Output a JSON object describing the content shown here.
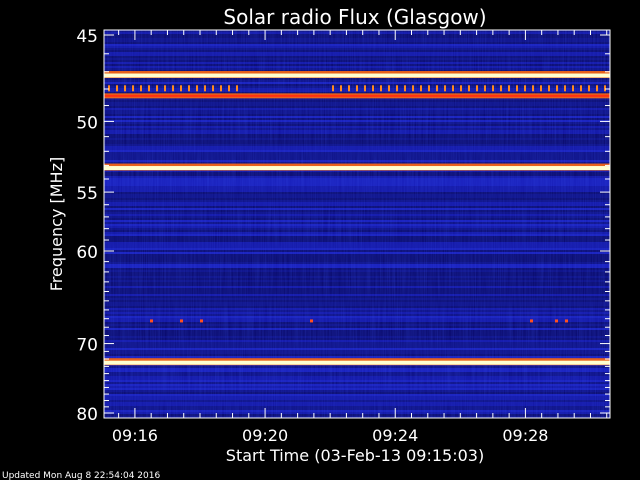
{
  "chart_data": {
    "type": "heatmap",
    "title": "Solar radio Flux (Glasgow)",
    "xlabel": "Start Time (03-Feb-13 09:15:03)",
    "ylabel": "Frequency [MHz]",
    "updated_text": "Updated Mon Aug  8 22:54:04 2016",
    "x_ticks": [
      "09:16",
      "09:20",
      "09:24",
      "09:28"
    ],
    "x_tick_minutes": [
      16,
      20,
      24,
      28
    ],
    "x_range_minutes": [
      15.05,
      30.6
    ],
    "y_ticks": [
      "45",
      "50",
      "55",
      "60",
      "70",
      "80"
    ],
    "y_tick_values": [
      45,
      50,
      55,
      60,
      70,
      80
    ],
    "y_range_mhz": [
      45,
      80
    ],
    "y_scale": "reciprocal",
    "colors": {
      "background": "#000000",
      "low": "#0a0a8c",
      "high": "#ffffe0",
      "mid": "#ff4000"
    },
    "bright_bands_mhz": [
      47.3,
      48.5,
      53.3,
      72.7
    ],
    "dotted_bands_mhz": [
      47.9,
      67.2
    ]
  }
}
